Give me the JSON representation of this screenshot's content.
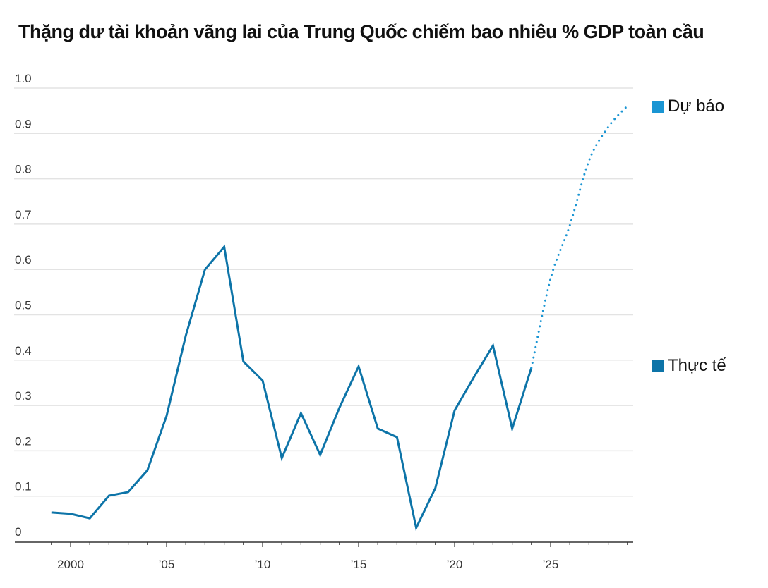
{
  "chart_data": {
    "type": "line",
    "title": "Thặng dư tài khoản vãng lai của Trung Quốc chiếm bao nhiêu % GDP toàn cầu",
    "xlabel": "",
    "ylabel": "",
    "ylim": [
      0,
      1.0
    ],
    "xlim": [
      1998,
      2029.5
    ],
    "grid": true,
    "legend_position": "right",
    "y_ticks": [
      {
        "value": 0,
        "label": "0"
      },
      {
        "value": 0.1,
        "label": "0.1"
      },
      {
        "value": 0.2,
        "label": "0.2"
      },
      {
        "value": 0.3,
        "label": "0.3"
      },
      {
        "value": 0.4,
        "label": "0.4"
      },
      {
        "value": 0.5,
        "label": "0.5"
      },
      {
        "value": 0.6,
        "label": "0.6"
      },
      {
        "value": 0.7,
        "label": "0.7"
      },
      {
        "value": 0.8,
        "label": "0.8"
      },
      {
        "value": 0.9,
        "label": "0.9"
      },
      {
        "value": 1.0,
        "label": "1.0"
      }
    ],
    "x_ticks": [
      {
        "value": 2000,
        "label": "2000"
      },
      {
        "value": 2005,
        "label": "’05"
      },
      {
        "value": 2010,
        "label": "’10"
      },
      {
        "value": 2015,
        "label": "’15"
      },
      {
        "value": 2020,
        "label": "’20"
      },
      {
        "value": 2025,
        "label": "’25"
      }
    ],
    "series": [
      {
        "name": "Thực tế",
        "color": "#0d74a8",
        "style": "solid",
        "x": [
          1999,
          2000,
          2001,
          2002,
          2003,
          2004,
          2005,
          2006,
          2007,
          2008,
          2009,
          2010,
          2011,
          2012,
          2013,
          2014,
          2015,
          2016,
          2017,
          2018,
          2019,
          2020,
          2021,
          2022,
          2023,
          2024
        ],
        "y": [
          0.064,
          0.061,
          0.051,
          0.101,
          0.109,
          0.157,
          0.277,
          0.454,
          0.6,
          0.65,
          0.397,
          0.355,
          0.184,
          0.283,
          0.191,
          0.295,
          0.386,
          0.249,
          0.23,
          0.03,
          0.118,
          0.289,
          0.362,
          0.432,
          0.249,
          0.383
        ]
      },
      {
        "name": "Dự báo",
        "color": "#1a95d3",
        "style": "dotted",
        "x": [
          2024,
          2025,
          2026,
          2027,
          2028,
          2029
        ],
        "y": [
          0.383,
          0.58,
          0.697,
          0.84,
          0.914,
          0.961
        ]
      }
    ]
  }
}
